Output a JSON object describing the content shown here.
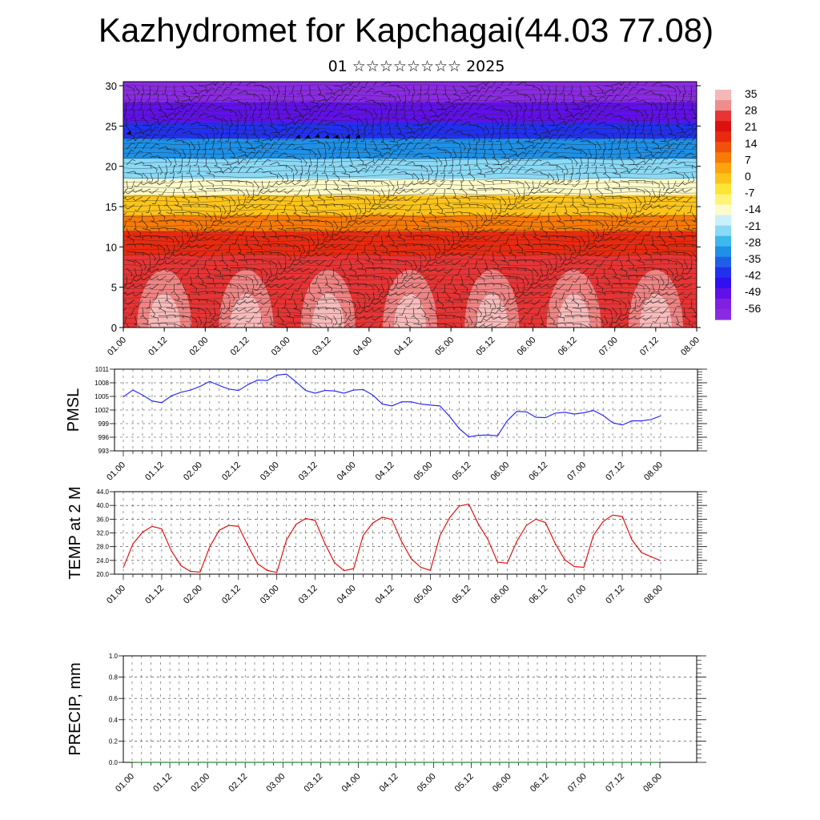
{
  "page": {
    "title": "Kazhydromet for Kapchagai(44.03 77.08)",
    "subtitle": "01 ☆☆☆☆☆☆☆☆ 2025"
  },
  "colors": {
    "pmsl_line": "#1a1aff",
    "temp_line": "#e00000",
    "precip_line": "#006400",
    "colorbar": [
      "#f4b8b8",
      "#ef8d8d",
      "#e73434",
      "#dd1010",
      "#e82a10",
      "#f0520a",
      "#f77a07",
      "#fba40c",
      "#fcc41b",
      "#fde535",
      "#fff37a",
      "#fffbc9",
      "#c9f0fb",
      "#8ad9f5",
      "#3db8ec",
      "#1e90e6",
      "#1f5fe8",
      "#2230ee",
      "#3010f0",
      "#6010e8",
      "#8020e0",
      "#8a2be2"
    ]
  },
  "chart_data": [
    {
      "type": "heatmap",
      "title": "",
      "xlabel": "",
      "ylabel": "",
      "x_tick_labels": [
        "01.00",
        "01.12",
        "02.00",
        "02.12",
        "03.00",
        "03.12",
        "04.00",
        "04.12",
        "05.00",
        "05.12",
        "06.00",
        "06.12",
        "07.00",
        "07.12",
        "08.00"
      ],
      "y_ticks": [
        0,
        5,
        10,
        15,
        20,
        25,
        30
      ],
      "ylim": [
        0,
        30.5
      ],
      "colorbar_labels": [
        "35",
        "28",
        "21",
        "14",
        "7",
        "0",
        "-7",
        "-14",
        "-21",
        "-28",
        "-35",
        "-42",
        "-49",
        "-56"
      ],
      "value_range": [
        -56,
        35
      ],
      "legend_position": "right",
      "overlay": "wind barbs"
    },
    {
      "type": "line",
      "ylabel": "PMSL",
      "x_tick_labels": [
        "01.00",
        "01.12",
        "02.00",
        "02.12",
        "03.00",
        "03.12",
        "04.00",
        "04.12",
        "05.00",
        "05.12",
        "06.00",
        "06.12",
        "07.00",
        "07.12",
        "08.00"
      ],
      "y_ticks": [
        "993",
        "996",
        "999",
        "1002",
        "1005",
        "1008",
        "1011"
      ],
      "ylim": [
        993,
        1011
      ],
      "grid": true,
      "series": [
        {
          "x_hours": [
            0,
            3,
            6,
            9,
            12,
            15,
            18,
            21,
            24,
            27,
            30,
            33,
            36,
            39,
            42,
            45,
            48,
            51,
            54,
            57,
            60,
            63,
            66,
            69,
            72,
            75,
            78,
            81,
            84,
            87,
            90,
            93,
            96,
            99,
            102,
            105,
            108,
            111,
            114,
            117,
            120,
            123,
            126,
            129,
            132,
            135,
            138,
            141,
            144,
            147,
            150,
            153,
            156,
            159,
            162,
            165,
            168
          ],
          "values": [
            1004.9,
            1006.4,
            1005.3,
            1004.0,
            1003.6,
            1005.1,
            1005.9,
            1006.4,
            1007.2,
            1008.3,
            1007.4,
            1006.6,
            1006.3,
            1007.6,
            1008.6,
            1008.5,
            1009.7,
            1009.9,
            1008.2,
            1006.3,
            1005.7,
            1006.3,
            1006.2,
            1005.7,
            1006.4,
            1006.5,
            1005.3,
            1003.3,
            1002.9,
            1003.8,
            1003.8,
            1003.3,
            1003.1,
            1002.9,
            1000.6,
            997.9,
            996.1,
            996.4,
            996.5,
            996.3,
            999.6,
            1001.7,
            1001.6,
            1000.4,
            1000.3,
            1001.3,
            1001.5,
            1001.1,
            1001.4,
            1001.9,
            1000.8,
            999.2,
            998.7,
            999.6,
            999.6,
            999.9,
            1000.7
          ]
        }
      ]
    },
    {
      "type": "line",
      "ylabel": "TEMP at 2 M",
      "x_tick_labels": [
        "01.00",
        "01.12",
        "02.00",
        "02.12",
        "03.00",
        "03.12",
        "04.00",
        "04.12",
        "05.00",
        "05.12",
        "06.00",
        "06.12",
        "07.00",
        "07.12",
        "08.00"
      ],
      "y_ticks": [
        "20.0",
        "24.0",
        "28.0",
        "32.0",
        "36.0",
        "40.0",
        "44.0"
      ],
      "ylim": [
        20,
        44
      ],
      "grid": true,
      "series": [
        {
          "x_hours": [
            0,
            3,
            6,
            9,
            12,
            15,
            18,
            21,
            24,
            27,
            30,
            33,
            36,
            39,
            42,
            45,
            48,
            51,
            54,
            57,
            60,
            63,
            66,
            69,
            72,
            75,
            78,
            81,
            84,
            87,
            90,
            93,
            96,
            99,
            102,
            105,
            108,
            111,
            114,
            117,
            120,
            123,
            126,
            129,
            132,
            135,
            138,
            141,
            144,
            147,
            150,
            153,
            156,
            159,
            162,
            165,
            168
          ],
          "values": [
            21.9,
            28.8,
            32.2,
            33.9,
            33.2,
            26.8,
            22.5,
            20.8,
            20.6,
            27.9,
            32.8,
            34.2,
            33.9,
            28.2,
            23.0,
            21.1,
            20.5,
            29.9,
            34.5,
            36.2,
            35.6,
            29.0,
            23.4,
            21.0,
            21.6,
            31.3,
            34.9,
            36.6,
            35.9,
            29.5,
            24.5,
            22.0,
            21.1,
            31.2,
            36.4,
            39.8,
            40.4,
            34.6,
            30.1,
            23.5,
            23.2,
            29.5,
            34.2,
            36.0,
            35.0,
            29.0,
            24.2,
            22.2,
            22.0,
            31.3,
            35.3,
            37.2,
            36.8,
            30.0,
            26.3,
            25.1,
            23.9
          ]
        }
      ]
    },
    {
      "type": "line",
      "ylabel": "PRECIP, mm",
      "x_tick_labels": [
        "01.00",
        "01.12",
        "02.00",
        "02.12",
        "03.00",
        "03.12",
        "04.00",
        "04.12",
        "05.00",
        "05.12",
        "06.00",
        "06.12",
        "07.00",
        "07.12",
        "08.00"
      ],
      "y_ticks": [
        "0.0",
        "0.2",
        "0.4",
        "0.6",
        "0.8",
        "1.0"
      ],
      "ylim": [
        0,
        1
      ],
      "grid": true,
      "series": [
        {
          "x_hours": [
            0,
            168
          ],
          "values": [
            0,
            0
          ]
        }
      ]
    }
  ]
}
